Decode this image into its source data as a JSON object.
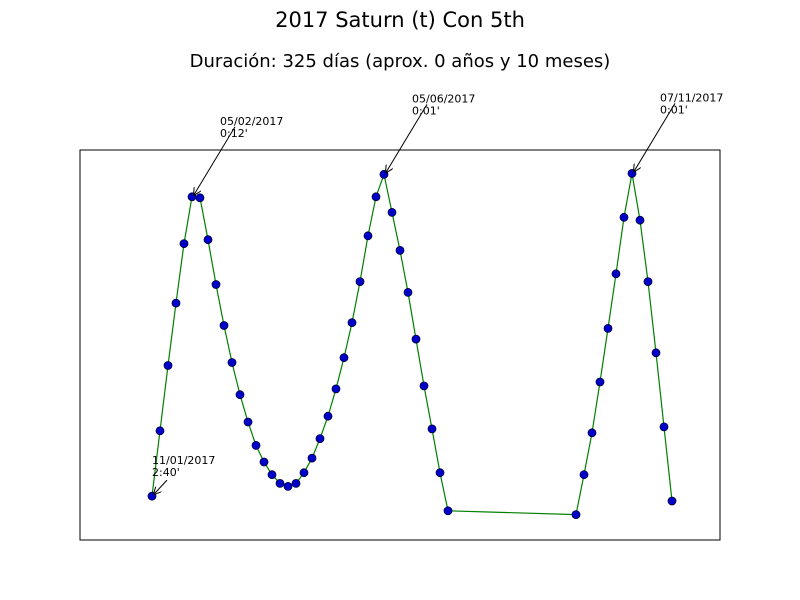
{
  "chart_data": {
    "type": "line",
    "title": "2017 Saturn (t) Con 5th",
    "subtitle": "Duración: 325 días (aprox. 0 años y 10 meses)",
    "xlabel": "",
    "ylabel": "",
    "grid": false,
    "legend": "none",
    "x_domain": [
      -8,
      72
    ],
    "y_domain": [
      -0.1,
      3.9
    ],
    "colors": {
      "line": "#008000",
      "marker_fill": "#0000cc",
      "marker_edge": "#000033"
    },
    "series": [
      {
        "values": [
          [
            1,
            0.35
          ],
          [
            2,
            1.02
          ],
          [
            3,
            1.69
          ],
          [
            4,
            2.33
          ],
          [
            5,
            2.94
          ],
          [
            6,
            3.42
          ],
          [
            7,
            3.41
          ],
          [
            8,
            2.98
          ],
          [
            9,
            2.52
          ],
          [
            10,
            2.1
          ],
          [
            11,
            1.72
          ],
          [
            12,
            1.39
          ],
          [
            13,
            1.11
          ],
          [
            14,
            0.87
          ],
          [
            15,
            0.7
          ],
          [
            16,
            0.57
          ],
          [
            17,
            0.48
          ],
          [
            18,
            0.45
          ],
          [
            19,
            0.48
          ],
          [
            20,
            0.59
          ],
          [
            21,
            0.74
          ],
          [
            22,
            0.94
          ],
          [
            23,
            1.17
          ],
          [
            24,
            1.45
          ],
          [
            25,
            1.77
          ],
          [
            26,
            2.13
          ],
          [
            27,
            2.55
          ],
          [
            28,
            3.02
          ],
          [
            29,
            3.42
          ],
          [
            30,
            3.65
          ],
          [
            31,
            3.26
          ],
          [
            32,
            2.87
          ],
          [
            33,
            2.44
          ],
          [
            34,
            1.96
          ],
          [
            35,
            1.48
          ],
          [
            36,
            1.04
          ],
          [
            37,
            0.59
          ],
          [
            38,
            0.2
          ],
          [
            54,
            0.16
          ],
          [
            55,
            0.57
          ],
          [
            56,
            1.0
          ],
          [
            57,
            1.52
          ],
          [
            58,
            2.07
          ],
          [
            59,
            2.63
          ],
          [
            60,
            3.21
          ],
          [
            61,
            3.66
          ],
          [
            62,
            3.18
          ],
          [
            63,
            2.55
          ],
          [
            64,
            1.82
          ],
          [
            65,
            1.06
          ],
          [
            66,
            0.3
          ]
        ]
      }
    ],
    "annotations": [
      {
        "date": "11/01/2017",
        "value": "2:40'",
        "point_index": 0
      },
      {
        "date": "05/02/2017",
        "value": "0:12'",
        "point_index": 5
      },
      {
        "date": "05/06/2017",
        "value": "0:01'",
        "point_index": 29
      },
      {
        "date": "07/11/2017",
        "value": "0:01'",
        "point_index": 45
      }
    ]
  }
}
